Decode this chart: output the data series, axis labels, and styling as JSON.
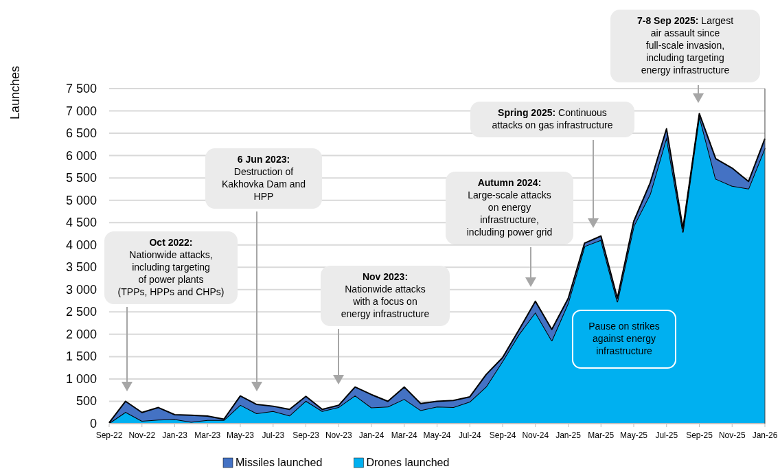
{
  "chart_data": {
    "type": "area",
    "stacked": true,
    "ylabel": "Launches",
    "categories": [
      "Sep-22",
      null,
      "Nov-22",
      null,
      "Jan-23",
      null,
      "Mar-23",
      null,
      "May-23",
      null,
      "Jul-23",
      null,
      "Sep-23",
      null,
      "Nov-23",
      null,
      "Jan-24",
      null,
      "Mar-24",
      null,
      "May-24",
      null,
      "Jul-24",
      null,
      "Sep-24",
      null,
      "Nov-24",
      null,
      "Jan-25",
      null,
      "Mar-25",
      null,
      "May-25",
      null,
      "Jul-25",
      null,
      "Sep-25",
      null,
      "Nov-25",
      null,
      "Jan-26"
    ],
    "series": [
      {
        "name": "Drones launched",
        "color": "#00b0f0",
        "values": [
          10,
          260,
          60,
          90,
          100,
          40,
          80,
          80,
          420,
          230,
          280,
          180,
          510,
          280,
          370,
          630,
          360,
          380,
          550,
          300,
          380,
          370,
          490,
          830,
          1400,
          2000,
          2490,
          1860,
          2700,
          3970,
          4110,
          2730,
          4420,
          5140,
          6410,
          4290,
          6890,
          5480,
          5320,
          5260,
          6170
        ]
      },
      {
        "name": "Missiles launched",
        "color": "#4472c4",
        "values": [
          10,
          240,
          190,
          270,
          100,
          150,
          90,
          20,
          200,
          200,
          110,
          140,
          100,
          40,
          40,
          190,
          290,
          120,
          270,
          150,
          120,
          150,
          110,
          270,
          80,
          100,
          250,
          250,
          100,
          70,
          90,
          80,
          110,
          250,
          190,
          80,
          50,
          450,
          400,
          160,
          210
        ]
      }
    ],
    "ylim": [
      0,
      7500
    ],
    "yticks": [
      0,
      {
        "value": 500,
        "label": "500"
      },
      {
        "value": 1000,
        "label": "1 000"
      },
      {
        "value": 1500,
        "label": "1 500"
      },
      {
        "value": 2000,
        "label": "2 000"
      },
      {
        "value": 2500,
        "label": "2 500"
      },
      {
        "value": 3000,
        "label": "3 000"
      },
      {
        "value": 3500,
        "label": "3 500"
      },
      {
        "value": 4000,
        "label": "4 000"
      },
      {
        "value": 4500,
        "label": "4 500"
      },
      {
        "value": 5000,
        "label": "5 000"
      },
      {
        "value": 5500,
        "label": "5 500"
      },
      {
        "value": 6000,
        "label": "6 000"
      },
      {
        "value": 6500,
        "label": "6 500"
      },
      {
        "value": 7000,
        "label": "7 000"
      },
      {
        "value": 7500,
        "label": "7 500"
      }
    ],
    "grid": "y",
    "legend": "bottom",
    "annotations": [
      "Oct 2022: Nationwide attacks, including targeting of power plants (TPPs, HPPs and CHPs)",
      "6 Jun 2023: Destruction of Kakhovka Dam and HPP",
      "Nov 2023: Nationwide attacks with a focus on energy infrastructure",
      "Autumn 2024: Large-scale attacks on energy infrastructure, including power grid",
      "Spring 2025: Continuous attacks on gas infrastructure",
      "7-8 Sep 2025: Largest air assault since full-scale invasion, including targeting energy infrastructure",
      "Pause on strikes against energy infrastructure"
    ]
  }
}
